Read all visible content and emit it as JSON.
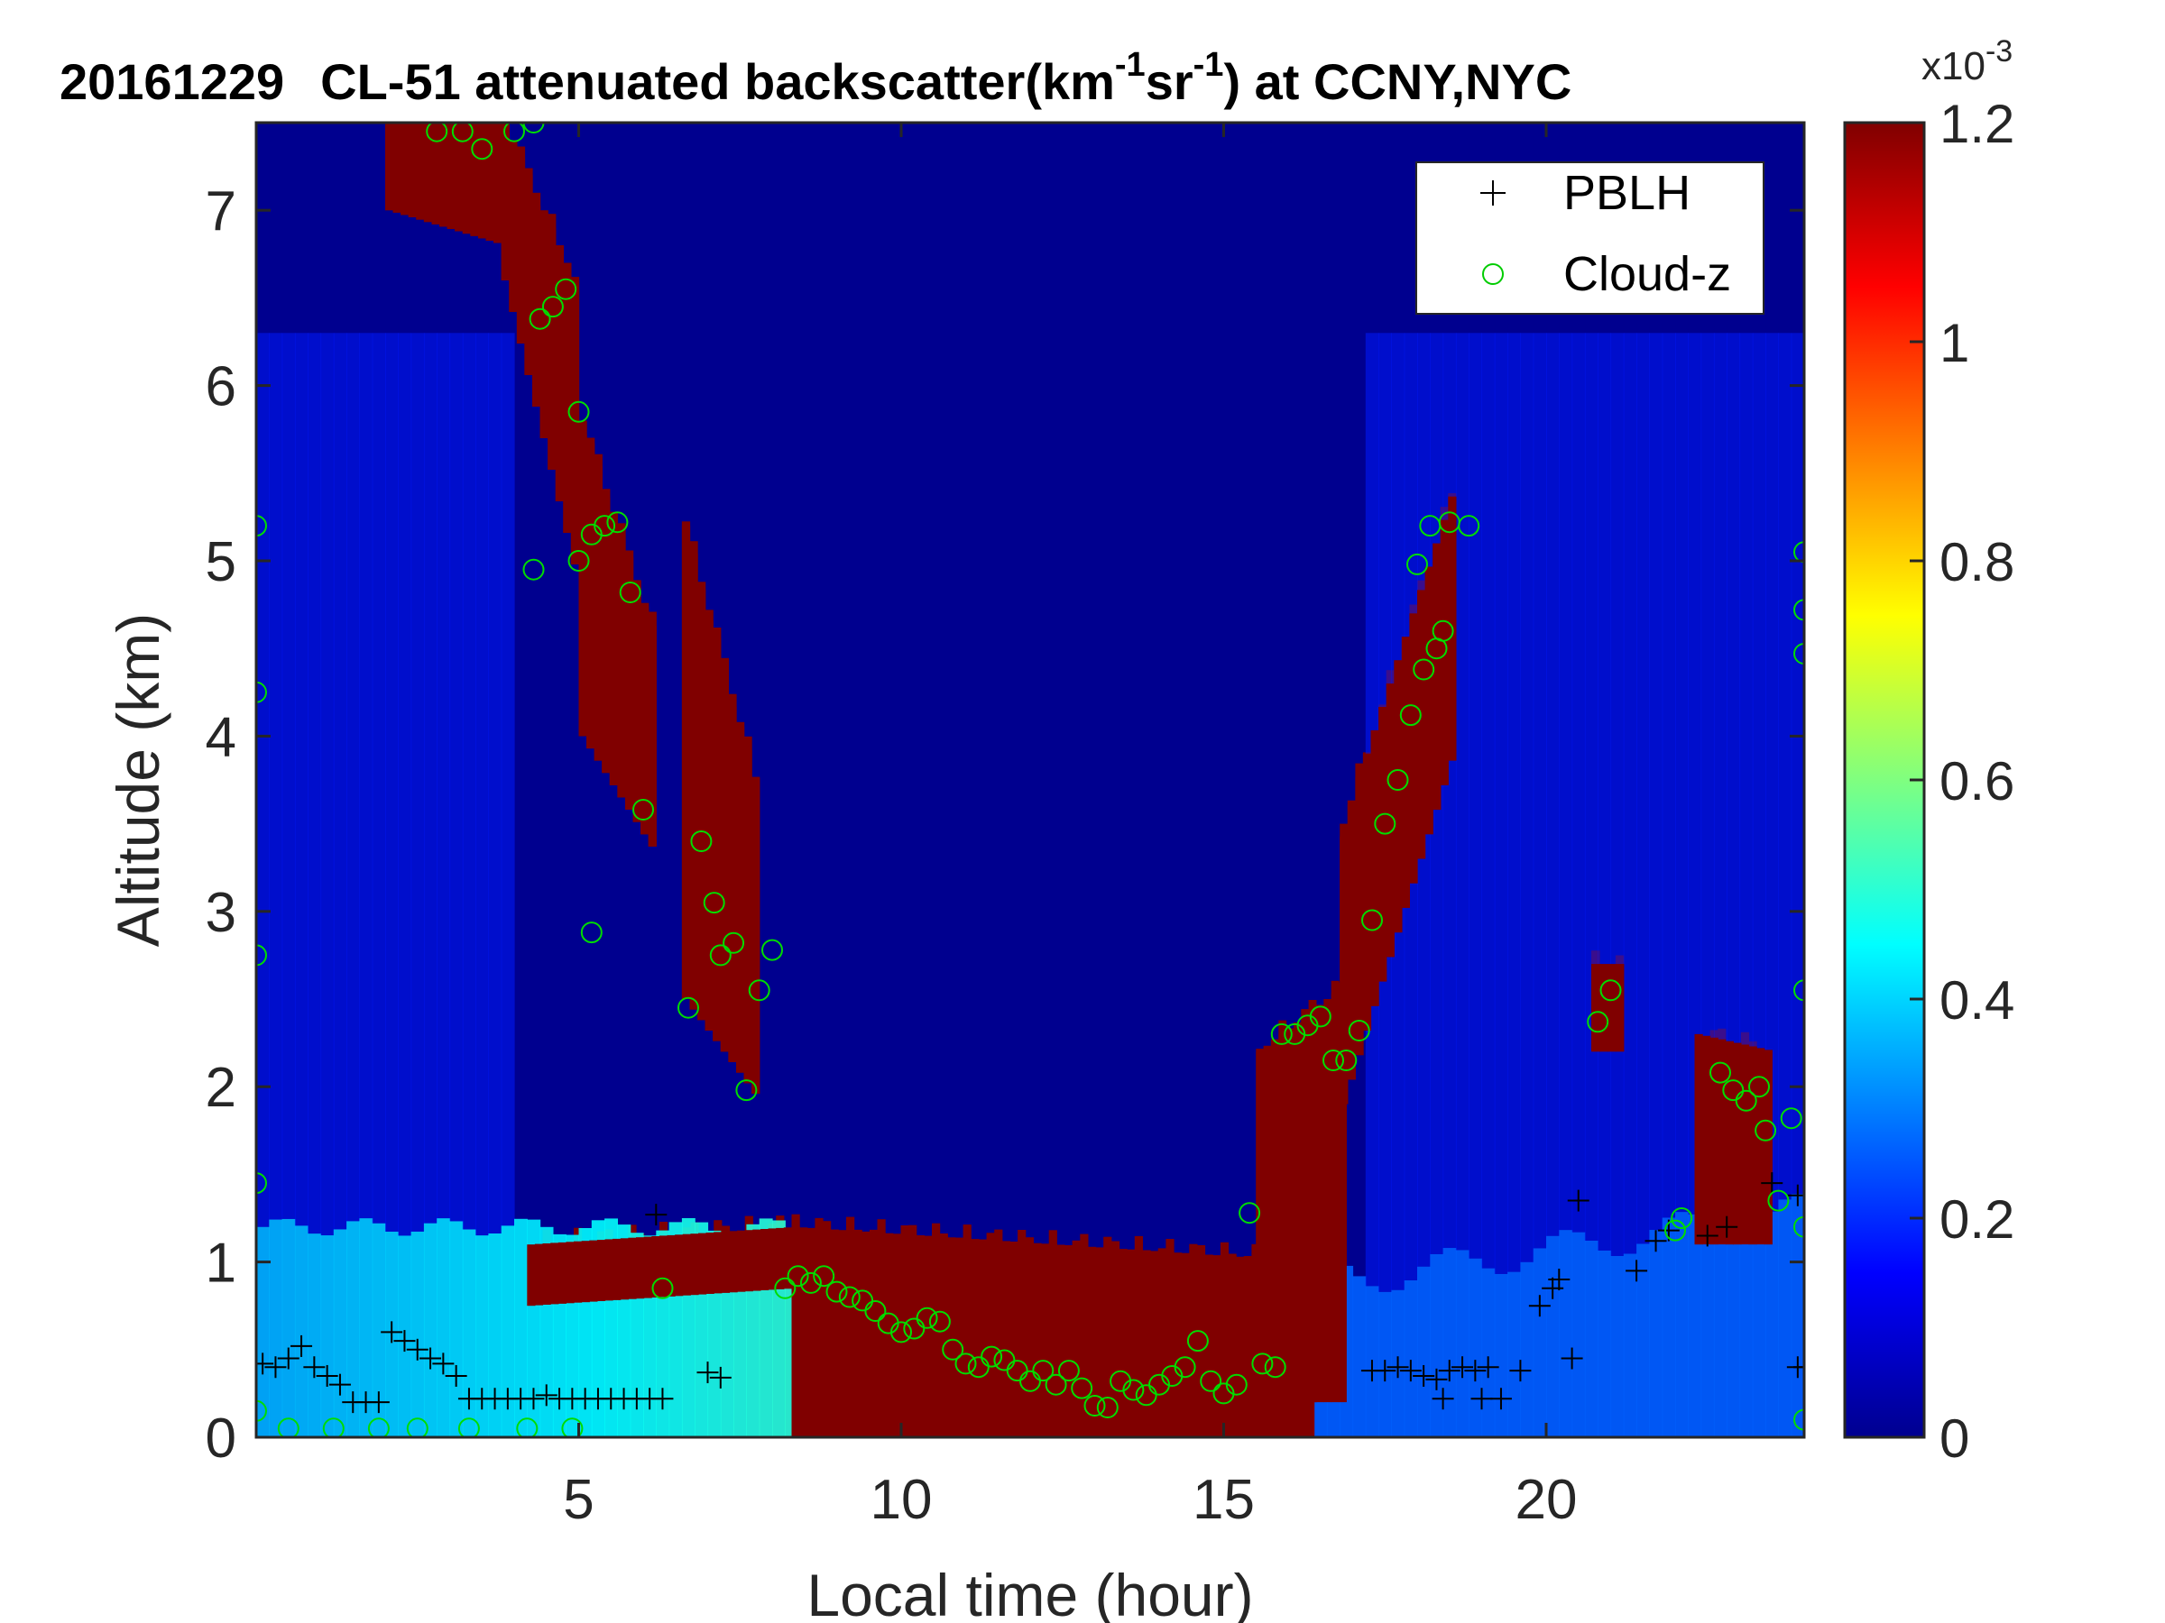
{
  "chart_data": {
    "type": "heatmap",
    "title": {
      "date": "20161229",
      "prefix": "CL-51 attenuated backscatter(km",
      "sup1": "-1",
      "mid": "sr",
      "sup2": "-1",
      "suffix": ") at CCNY,NYC"
    },
    "xlabel": "Local time (hour)",
    "ylabel": "Altitude (km)",
    "xlim": [
      0,
      24
    ],
    "ylim": [
      0,
      7.5
    ],
    "xticks": [
      5,
      10,
      15,
      20
    ],
    "xtick_labels": [
      "5",
      "10",
      "15",
      "20"
    ],
    "yticks": [
      0,
      1,
      2,
      3,
      4,
      5,
      6,
      7
    ],
    "ytick_labels": [
      "0",
      "1",
      "2",
      "3",
      "4",
      "5",
      "6",
      "7"
    ],
    "colorbar": {
      "colormap": "jet",
      "clim": [
        0,
        1.2
      ],
      "ticks": [
        0,
        0.2,
        0.4,
        0.6,
        0.8,
        1,
        1.2
      ],
      "tick_labels": [
        "0",
        "0.2",
        "0.4",
        "0.6",
        "0.8",
        "1",
        "1.2"
      ],
      "exponent_label": "x10",
      "exponent": "-3"
    },
    "legend": {
      "placement": "top-right",
      "entries": [
        {
          "label": "PBLH",
          "marker": "+",
          "color": "#000000"
        },
        {
          "label": "Cloud-z",
          "marker": "o",
          "color": "#00cc00"
        }
      ]
    },
    "pblh": [
      [
        0.1,
        0.42
      ],
      [
        0.3,
        0.4
      ],
      [
        0.5,
        0.45
      ],
      [
        0.7,
        0.52
      ],
      [
        0.9,
        0.4
      ],
      [
        1.1,
        0.35
      ],
      [
        1.3,
        0.3
      ],
      [
        1.5,
        0.2
      ],
      [
        1.7,
        0.2
      ],
      [
        1.9,
        0.2
      ],
      [
        2.1,
        0.6
      ],
      [
        2.3,
        0.55
      ],
      [
        2.5,
        0.5
      ],
      [
        2.7,
        0.45
      ],
      [
        2.9,
        0.42
      ],
      [
        3.1,
        0.35
      ],
      [
        3.3,
        0.22
      ],
      [
        3.5,
        0.22
      ],
      [
        3.7,
        0.22
      ],
      [
        3.9,
        0.22
      ],
      [
        4.1,
        0.22
      ],
      [
        4.3,
        0.22
      ],
      [
        4.5,
        0.24
      ],
      [
        4.7,
        0.22
      ],
      [
        4.9,
        0.22
      ],
      [
        5.1,
        0.22
      ],
      [
        5.3,
        0.22
      ],
      [
        5.5,
        0.22
      ],
      [
        5.7,
        0.22
      ],
      [
        5.9,
        0.22
      ],
      [
        6.1,
        0.22
      ],
      [
        6.3,
        0.22
      ],
      [
        6.2,
        1.27
      ],
      [
        7.0,
        0.37
      ],
      [
        7.2,
        0.34
      ],
      [
        17.3,
        0.38
      ],
      [
        17.5,
        0.38
      ],
      [
        17.7,
        0.4
      ],
      [
        17.9,
        0.38
      ],
      [
        18.1,
        0.35
      ],
      [
        18.3,
        0.33
      ],
      [
        18.5,
        0.38
      ],
      [
        18.7,
        0.4
      ],
      [
        18.9,
        0.38
      ],
      [
        19.1,
        0.4
      ],
      [
        18.4,
        0.22
      ],
      [
        19.0,
        0.22
      ],
      [
        19.3,
        0.22
      ],
      [
        19.6,
        0.38
      ],
      [
        19.9,
        0.75
      ],
      [
        20.1,
        0.85
      ],
      [
        20.2,
        0.9
      ],
      [
        20.4,
        0.45
      ],
      [
        20.5,
        1.35
      ],
      [
        21.4,
        0.95
      ],
      [
        21.7,
        1.12
      ],
      [
        21.9,
        1.18
      ],
      [
        22.5,
        1.15
      ],
      [
        22.8,
        1.2
      ],
      [
        23.5,
        1.45
      ],
      [
        23.9,
        1.38
      ],
      [
        24.0,
        0.4
      ],
      [
        23.9,
        0.4
      ]
    ],
    "cloud_z": [
      [
        0.5,
        0.05
      ],
      [
        1.2,
        0.05
      ],
      [
        1.9,
        0.05
      ],
      [
        2.5,
        0.05
      ],
      [
        3.3,
        0.05
      ],
      [
        4.2,
        0.05
      ],
      [
        4.9,
        0.05
      ],
      [
        2.8,
        7.45
      ],
      [
        3.2,
        7.45
      ],
      [
        3.5,
        7.35
      ],
      [
        4.0,
        7.45
      ],
      [
        4.3,
        7.5
      ],
      [
        4.4,
        6.38
      ],
      [
        4.6,
        6.45
      ],
      [
        4.8,
        6.55
      ],
      [
        5.0,
        5.85
      ],
      [
        5.2,
        5.15
      ],
      [
        5.4,
        5.2
      ],
      [
        5.6,
        5.22
      ],
      [
        5.8,
        4.82
      ],
      [
        4.3,
        4.95
      ],
      [
        5.0,
        5.0
      ],
      [
        5.2,
        2.88
      ],
      [
        6.0,
        3.58
      ],
      [
        6.3,
        0.85
      ],
      [
        6.7,
        2.45
      ],
      [
        6.9,
        3.4
      ],
      [
        7.1,
        3.05
      ],
      [
        7.2,
        2.75
      ],
      [
        7.4,
        2.82
      ],
      [
        7.6,
        1.98
      ],
      [
        7.8,
        2.55
      ],
      [
        8.0,
        2.78
      ],
      [
        8.2,
        0.85
      ],
      [
        8.4,
        0.92
      ],
      [
        8.6,
        0.88
      ],
      [
        8.8,
        0.92
      ],
      [
        9.0,
        0.83
      ],
      [
        9.2,
        0.8
      ],
      [
        9.4,
        0.78
      ],
      [
        9.6,
        0.72
      ],
      [
        9.8,
        0.65
      ],
      [
        10.0,
        0.6
      ],
      [
        10.2,
        0.62
      ],
      [
        10.4,
        0.68
      ],
      [
        10.6,
        0.66
      ],
      [
        10.8,
        0.5
      ],
      [
        11.0,
        0.42
      ],
      [
        11.2,
        0.4
      ],
      [
        11.4,
        0.46
      ],
      [
        11.6,
        0.44
      ],
      [
        11.8,
        0.38
      ],
      [
        12.0,
        0.32
      ],
      [
        12.2,
        0.38
      ],
      [
        12.4,
        0.3
      ],
      [
        12.6,
        0.38
      ],
      [
        12.8,
        0.28
      ],
      [
        13.0,
        0.18
      ],
      [
        13.2,
        0.17
      ],
      [
        13.4,
        0.32
      ],
      [
        13.6,
        0.27
      ],
      [
        13.8,
        0.24
      ],
      [
        14.0,
        0.3
      ],
      [
        14.2,
        0.35
      ],
      [
        14.4,
        0.4
      ],
      [
        14.6,
        0.55
      ],
      [
        14.8,
        0.32
      ],
      [
        15.0,
        0.25
      ],
      [
        15.2,
        0.3
      ],
      [
        15.4,
        1.28
      ],
      [
        15.6,
        0.42
      ],
      [
        15.8,
        0.4
      ],
      [
        15.9,
        2.3
      ],
      [
        16.1,
        2.3
      ],
      [
        16.3,
        2.35
      ],
      [
        16.5,
        2.4
      ],
      [
        16.7,
        2.15
      ],
      [
        16.9,
        2.15
      ],
      [
        17.1,
        2.32
      ],
      [
        17.3,
        2.95
      ],
      [
        17.5,
        3.5
      ],
      [
        17.7,
        3.75
      ],
      [
        17.9,
        4.12
      ],
      [
        18.1,
        4.38
      ],
      [
        18.3,
        4.5
      ],
      [
        18.4,
        4.6
      ],
      [
        18.0,
        4.98
      ],
      [
        18.2,
        5.2
      ],
      [
        18.5,
        5.22
      ],
      [
        18.8,
        5.2
      ],
      [
        20.8,
        2.37
      ],
      [
        21.0,
        2.55
      ],
      [
        22.0,
        1.18
      ],
      [
        22.1,
        1.25
      ],
      [
        22.7,
        2.08
      ],
      [
        22.9,
        1.98
      ],
      [
        23.1,
        1.92
      ],
      [
        23.3,
        2.0
      ],
      [
        23.4,
        1.75
      ],
      [
        23.6,
        1.35
      ],
      [
        23.8,
        1.82
      ],
      [
        0.0,
        5.2
      ],
      [
        0.0,
        4.25
      ],
      [
        0.0,
        2.75
      ],
      [
        0.0,
        1.45
      ],
      [
        0.0,
        0.15
      ],
      [
        24.0,
        5.05
      ],
      [
        24.0,
        4.72
      ],
      [
        24.0,
        4.47
      ],
      [
        24.0,
        2.55
      ],
      [
        24.0,
        1.2
      ],
      [
        24.0,
        0.1
      ]
    ]
  }
}
